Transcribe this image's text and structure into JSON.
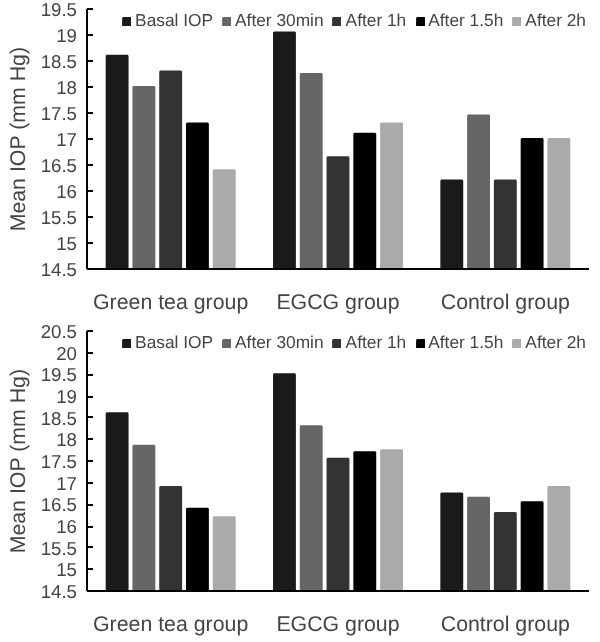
{
  "chart_data": [
    {
      "type": "bar",
      "categories": [
        "Green tea group",
        "EGCG group",
        "Control group"
      ],
      "ylabel": "Mean IOP (mm Hg)",
      "ylim": [
        14.5,
        19.5
      ],
      "yticks": [
        14.5,
        15,
        15.5,
        16,
        16.5,
        17,
        17.5,
        18,
        18.5,
        19,
        19.5
      ],
      "legend": "top",
      "grid": false,
      "series": [
        {
          "name": "Basal IOP",
          "color": "#1a1a1a",
          "values": [
            18.6,
            19.05,
            16.2
          ]
        },
        {
          "name": "After 30min",
          "color": "#666666",
          "values": [
            18.0,
            18.25,
            17.45
          ]
        },
        {
          "name": "After 1h",
          "color": "#333333",
          "values": [
            18.3,
            16.65,
            16.2
          ]
        },
        {
          "name": "After 1.5h",
          "color": "#000000",
          "values": [
            17.3,
            17.1,
            17.0
          ]
        },
        {
          "name": "After 2h",
          "color": "#aaaaaa",
          "values": [
            16.4,
            17.3,
            17.0
          ]
        }
      ]
    },
    {
      "type": "bar",
      "categories": [
        "Green tea group",
        "EGCG group",
        "Control group"
      ],
      "ylabel": "Mean IOP (mm Hg)",
      "ylim": [
        14.5,
        20.5
      ],
      "yticks": [
        14.5,
        15,
        15.5,
        16,
        16.5,
        17,
        17.5,
        18,
        18.5,
        19,
        19.5,
        20,
        20.5
      ],
      "legend": "top",
      "grid": false,
      "series": [
        {
          "name": "Basal IOP",
          "color": "#1a1a1a",
          "values": [
            18.6,
            19.5,
            16.75
          ]
        },
        {
          "name": "After 30min",
          "color": "#666666",
          "values": [
            17.85,
            18.3,
            16.65
          ]
        },
        {
          "name": "After 1h",
          "color": "#333333",
          "values": [
            16.9,
            17.55,
            16.3
          ]
        },
        {
          "name": "After 1.5h",
          "color": "#000000",
          "values": [
            16.4,
            17.7,
            16.55
          ]
        },
        {
          "name": "After 2h",
          "color": "#aaaaaa",
          "values": [
            16.2,
            17.75,
            16.9
          ]
        }
      ]
    }
  ]
}
